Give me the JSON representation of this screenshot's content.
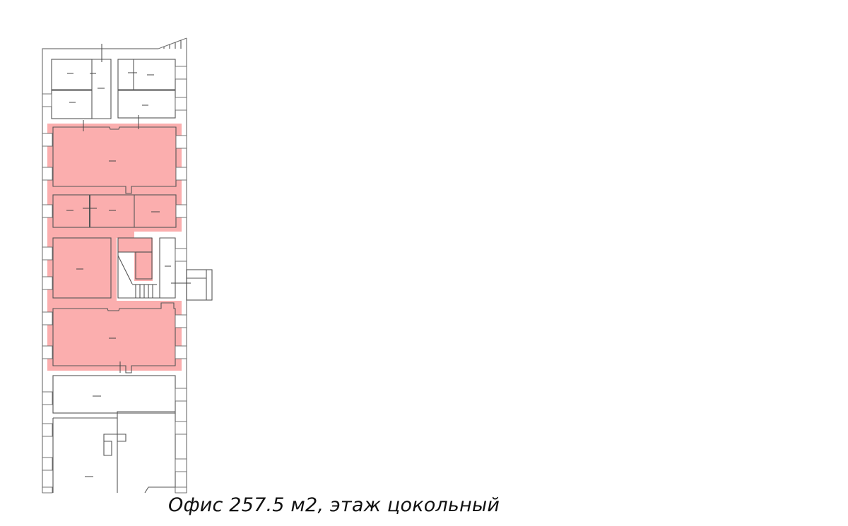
{
  "caption": "Офис 257.5 м2, этаж цокольный",
  "colors": {
    "highlight": "#fbaeae",
    "walls": "#555555"
  }
}
